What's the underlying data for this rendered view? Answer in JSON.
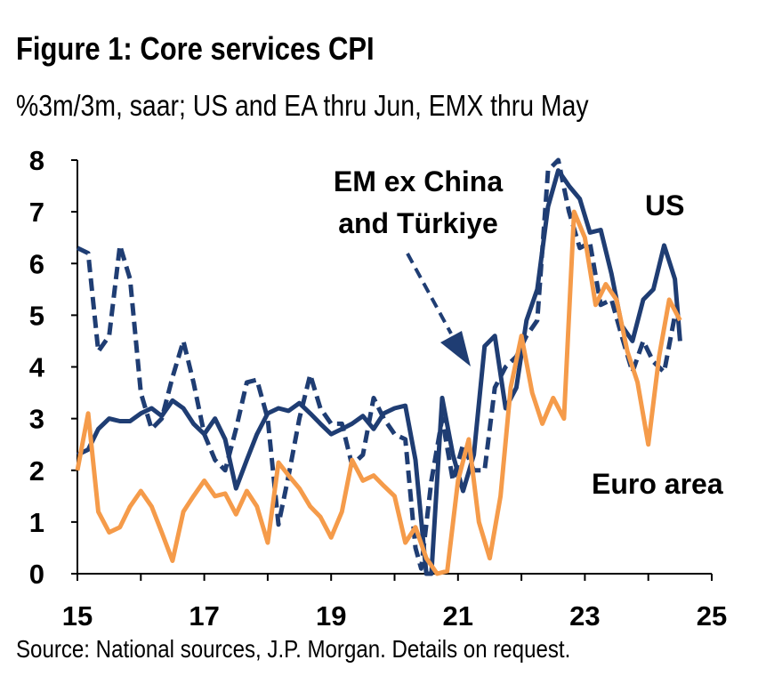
{
  "title": "Figure 1: Core services CPI",
  "subtitle": "%3m/3m, saar; US and EA thru Jun, EMX thru May",
  "source": "Source: National sources, J.P. Morgan. Details on request.",
  "colors": {
    "us": "#1f3d73",
    "em": "#1f3d73",
    "euro": "#f59b4a",
    "axis": "#000000"
  },
  "chart_data": {
    "type": "line",
    "xlim": [
      15,
      25
    ],
    "ylim": [
      0,
      8
    ],
    "x_ticks": [
      "15",
      "17",
      "19",
      "21",
      "23",
      "25"
    ],
    "y_ticks": [
      "0",
      "1",
      "2",
      "3",
      "4",
      "5",
      "6",
      "7",
      "8"
    ],
    "grid": false,
    "annotations": [
      {
        "lines": [
          "EM ex China",
          "and Türkiye"
        ],
        "series": "EM ex China and Türkiye"
      },
      {
        "lines": [
          "US"
        ],
        "series": "US"
      },
      {
        "lines": [
          "Euro area"
        ],
        "series": "Euro area"
      }
    ],
    "series": [
      {
        "name": "US",
        "style": "solid",
        "points": [
          [
            15.0,
            2.3
          ],
          [
            15.17,
            2.4
          ],
          [
            15.33,
            2.8
          ],
          [
            15.5,
            3.0
          ],
          [
            15.67,
            2.95
          ],
          [
            15.83,
            2.95
          ],
          [
            16.0,
            3.1
          ],
          [
            16.17,
            3.2
          ],
          [
            16.33,
            3.05
          ],
          [
            16.5,
            3.35
          ],
          [
            16.67,
            3.2
          ],
          [
            16.83,
            2.9
          ],
          [
            17.0,
            2.7
          ],
          [
            17.17,
            3.0
          ],
          [
            17.33,
            2.6
          ],
          [
            17.5,
            1.65
          ],
          [
            17.67,
            2.2
          ],
          [
            17.83,
            2.7
          ],
          [
            18.0,
            3.1
          ],
          [
            18.17,
            3.2
          ],
          [
            18.33,
            3.15
          ],
          [
            18.5,
            3.3
          ],
          [
            18.67,
            3.1
          ],
          [
            18.83,
            2.9
          ],
          [
            19.0,
            2.7
          ],
          [
            19.17,
            2.8
          ],
          [
            19.33,
            2.9
          ],
          [
            19.5,
            3.05
          ],
          [
            19.67,
            2.8
          ],
          [
            19.83,
            3.1
          ],
          [
            20.0,
            3.2
          ],
          [
            20.17,
            3.25
          ],
          [
            20.33,
            2.2
          ],
          [
            20.5,
            0.0
          ],
          [
            20.58,
            0.0
          ],
          [
            20.75,
            3.4
          ],
          [
            20.92,
            2.3
          ],
          [
            21.08,
            1.6
          ],
          [
            21.25,
            2.3
          ],
          [
            21.42,
            4.4
          ],
          [
            21.58,
            4.6
          ],
          [
            21.75,
            3.2
          ],
          [
            21.92,
            3.6
          ],
          [
            22.08,
            4.9
          ],
          [
            22.25,
            5.5
          ],
          [
            22.42,
            7.1
          ],
          [
            22.58,
            7.8
          ],
          [
            22.75,
            7.5
          ],
          [
            22.92,
            7.25
          ],
          [
            23.08,
            6.6
          ],
          [
            23.25,
            6.65
          ],
          [
            23.42,
            5.8
          ],
          [
            23.58,
            4.8
          ],
          [
            23.75,
            4.5
          ],
          [
            23.92,
            5.3
          ],
          [
            24.08,
            5.5
          ],
          [
            24.25,
            6.35
          ],
          [
            24.42,
            5.7
          ],
          [
            24.5,
            4.5
          ]
        ]
      },
      {
        "name": "EM ex China and Türkiye",
        "style": "dashed",
        "points": [
          [
            15.0,
            6.3
          ],
          [
            15.17,
            6.2
          ],
          [
            15.33,
            4.3
          ],
          [
            15.5,
            4.6
          ],
          [
            15.67,
            6.35
          ],
          [
            15.83,
            5.7
          ],
          [
            16.0,
            3.5
          ],
          [
            16.17,
            2.8
          ],
          [
            16.33,
            3.0
          ],
          [
            16.5,
            3.8
          ],
          [
            16.67,
            4.5
          ],
          [
            16.83,
            3.7
          ],
          [
            17.0,
            2.7
          ],
          [
            17.17,
            2.2
          ],
          [
            17.33,
            2.0
          ],
          [
            17.5,
            2.8
          ],
          [
            17.67,
            3.7
          ],
          [
            17.83,
            3.75
          ],
          [
            18.0,
            3.0
          ],
          [
            18.17,
            0.95
          ],
          [
            18.33,
            1.9
          ],
          [
            18.5,
            3.0
          ],
          [
            18.67,
            3.85
          ],
          [
            18.83,
            3.2
          ],
          [
            19.0,
            2.9
          ],
          [
            19.17,
            2.9
          ],
          [
            19.33,
            2.1
          ],
          [
            19.5,
            2.3
          ],
          [
            19.67,
            3.4
          ],
          [
            19.83,
            3.0
          ],
          [
            20.0,
            2.7
          ],
          [
            20.17,
            2.6
          ],
          [
            20.33,
            0.5
          ],
          [
            20.42,
            0.1
          ],
          [
            20.58,
            1.8
          ],
          [
            20.75,
            3.0
          ],
          [
            20.92,
            1.8
          ],
          [
            21.08,
            2.5
          ],
          [
            21.25,
            2.0
          ],
          [
            21.42,
            2.0
          ],
          [
            21.58,
            3.6
          ],
          [
            21.75,
            4.0
          ],
          [
            21.92,
            4.2
          ],
          [
            22.08,
            4.6
          ],
          [
            22.25,
            4.9
          ],
          [
            22.42,
            7.8
          ],
          [
            22.58,
            8.0
          ],
          [
            22.75,
            7.0
          ],
          [
            22.92,
            6.3
          ],
          [
            23.08,
            6.4
          ],
          [
            23.25,
            5.2
          ],
          [
            23.42,
            5.3
          ],
          [
            23.58,
            4.6
          ],
          [
            23.75,
            3.9
          ],
          [
            23.92,
            4.5
          ],
          [
            24.08,
            4.1
          ],
          [
            24.25,
            3.9
          ],
          [
            24.42,
            5.0
          ]
        ]
      },
      {
        "name": "Euro area",
        "style": "solid",
        "points": [
          [
            15.0,
            2.0
          ],
          [
            15.17,
            3.1
          ],
          [
            15.33,
            1.2
          ],
          [
            15.5,
            0.8
          ],
          [
            15.67,
            0.9
          ],
          [
            15.83,
            1.3
          ],
          [
            16.0,
            1.6
          ],
          [
            16.17,
            1.3
          ],
          [
            16.33,
            0.8
          ],
          [
            16.5,
            0.25
          ],
          [
            16.67,
            1.2
          ],
          [
            16.83,
            1.5
          ],
          [
            17.0,
            1.8
          ],
          [
            17.17,
            1.5
          ],
          [
            17.33,
            1.55
          ],
          [
            17.5,
            1.15
          ],
          [
            17.67,
            1.6
          ],
          [
            17.83,
            1.3
          ],
          [
            18.0,
            0.6
          ],
          [
            18.17,
            2.15
          ],
          [
            18.33,
            1.9
          ],
          [
            18.5,
            1.65
          ],
          [
            18.67,
            1.3
          ],
          [
            18.83,
            1.1
          ],
          [
            19.0,
            0.7
          ],
          [
            19.17,
            1.2
          ],
          [
            19.33,
            2.2
          ],
          [
            19.5,
            1.8
          ],
          [
            19.67,
            1.9
          ],
          [
            19.83,
            1.7
          ],
          [
            20.0,
            1.5
          ],
          [
            20.17,
            0.6
          ],
          [
            20.33,
            0.9
          ],
          [
            20.5,
            0.3
          ],
          [
            20.67,
            0.0
          ],
          [
            20.83,
            0.05
          ],
          [
            21.0,
            1.8
          ],
          [
            21.17,
            2.6
          ],
          [
            21.33,
            1.0
          ],
          [
            21.5,
            0.3
          ],
          [
            21.67,
            1.5
          ],
          [
            21.83,
            3.6
          ],
          [
            22.0,
            4.6
          ],
          [
            22.17,
            3.5
          ],
          [
            22.33,
            2.9
          ],
          [
            22.5,
            3.4
          ],
          [
            22.67,
            3.0
          ],
          [
            22.83,
            7.0
          ],
          [
            23.0,
            6.5
          ],
          [
            23.17,
            5.2
          ],
          [
            23.33,
            5.6
          ],
          [
            23.5,
            5.3
          ],
          [
            23.67,
            4.3
          ],
          [
            23.83,
            3.7
          ],
          [
            24.0,
            2.5
          ],
          [
            24.17,
            4.2
          ],
          [
            24.33,
            5.3
          ],
          [
            24.5,
            4.9
          ]
        ]
      }
    ]
  }
}
